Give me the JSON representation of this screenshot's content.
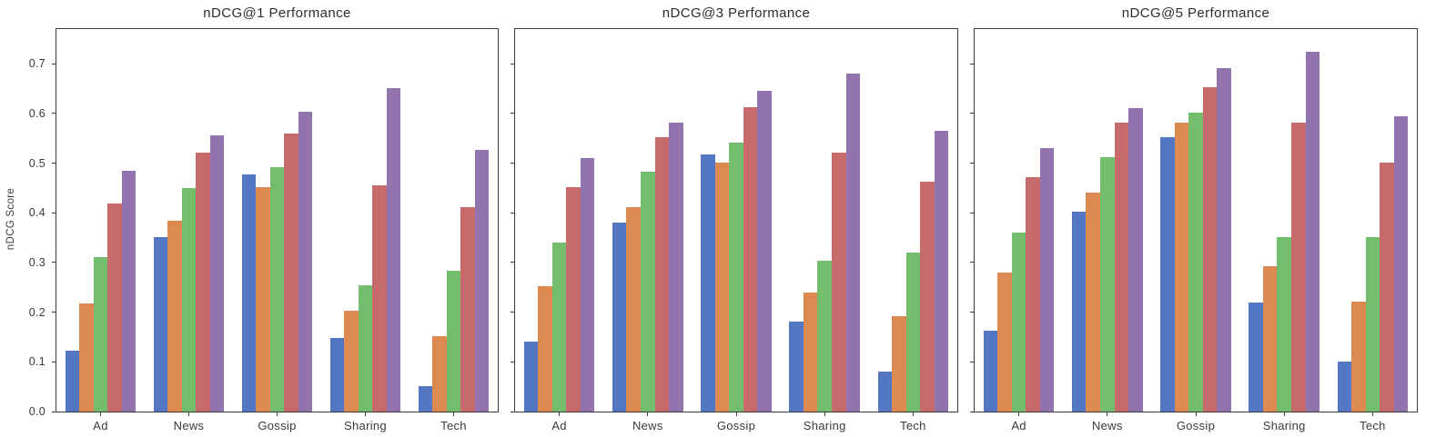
{
  "figure": {
    "ylabel": "nDCG Score",
    "background": "#ffffff",
    "spine_color": "#3a3a3a",
    "text_color": "#3a3a3a",
    "title_color": "#2d2d2d",
    "legend": "none",
    "grid": false
  },
  "chart_data": [
    {
      "type": "bar",
      "title": "nDCG@1 Performance",
      "ylabel": "nDCG Score",
      "categories": [
        "Ad",
        "News",
        "Gossip",
        "Sharing",
        "Tech"
      ],
      "yticks": [
        0.0,
        0.1,
        0.2,
        0.3,
        0.4,
        0.5,
        0.6,
        0.7
      ],
      "ylim": [
        0,
        0.77
      ],
      "ytick_labels_visible": true,
      "series": [
        {
          "name": "blue",
          "color": "#5377c2",
          "values": [
            0.122,
            0.352,
            0.477,
            0.148,
            0.051
          ]
        },
        {
          "name": "orange",
          "color": "#dd8a52",
          "values": [
            0.218,
            0.384,
            0.451,
            0.203,
            0.152
          ]
        },
        {
          "name": "green",
          "color": "#73bd6d",
          "values": [
            0.311,
            0.45,
            0.492,
            0.254,
            0.283
          ]
        },
        {
          "name": "red",
          "color": "#c66a6c",
          "values": [
            0.419,
            0.522,
            0.56,
            0.456,
            0.412
          ]
        },
        {
          "name": "purple",
          "color": "#9173ae",
          "values": [
            0.484,
            0.556,
            0.604,
            0.652,
            0.527
          ]
        }
      ]
    },
    {
      "type": "bar",
      "title": "nDCG@3 Performance",
      "ylabel": "",
      "categories": [
        "Ad",
        "News",
        "Gossip",
        "Sharing",
        "Tech"
      ],
      "yticks": [
        0.0,
        0.1,
        0.2,
        0.3,
        0.4,
        0.5,
        0.6,
        0.7
      ],
      "ylim": [
        0,
        0.77
      ],
      "ytick_labels_visible": false,
      "series": [
        {
          "name": "blue",
          "color": "#5377c2",
          "values": [
            0.141,
            0.38,
            0.517,
            0.182,
            0.081
          ]
        },
        {
          "name": "orange",
          "color": "#dd8a52",
          "values": [
            0.252,
            0.412,
            0.502,
            0.24,
            0.192
          ]
        },
        {
          "name": "green",
          "color": "#73bd6d",
          "values": [
            0.34,
            0.482,
            0.541,
            0.304,
            0.32
          ]
        },
        {
          "name": "red",
          "color": "#c66a6c",
          "values": [
            0.451,
            0.552,
            0.612,
            0.521,
            0.462
          ]
        },
        {
          "name": "purple",
          "color": "#9173ae",
          "values": [
            0.511,
            0.581,
            0.645,
            0.68,
            0.565
          ]
        }
      ]
    },
    {
      "type": "bar",
      "title": "nDCG@5 Performance",
      "ylabel": "",
      "categories": [
        "Ad",
        "News",
        "Gossip",
        "Sharing",
        "Tech"
      ],
      "yticks": [
        0.0,
        0.1,
        0.2,
        0.3,
        0.4,
        0.5,
        0.6,
        0.7
      ],
      "ylim": [
        0,
        0.77
      ],
      "ytick_labels_visible": false,
      "series": [
        {
          "name": "blue",
          "color": "#5377c2",
          "values": [
            0.163,
            0.402,
            0.552,
            0.22,
            0.101
          ]
        },
        {
          "name": "orange",
          "color": "#dd8a52",
          "values": [
            0.28,
            0.441,
            0.582,
            0.292,
            0.222
          ]
        },
        {
          "name": "green",
          "color": "#73bd6d",
          "values": [
            0.361,
            0.512,
            0.601,
            0.352,
            0.351
          ]
        },
        {
          "name": "red",
          "color": "#c66a6c",
          "values": [
            0.471,
            0.581,
            0.653,
            0.581,
            0.501
          ]
        },
        {
          "name": "purple",
          "color": "#9173ae",
          "values": [
            0.53,
            0.611,
            0.692,
            0.724,
            0.594
          ]
        }
      ]
    }
  ]
}
